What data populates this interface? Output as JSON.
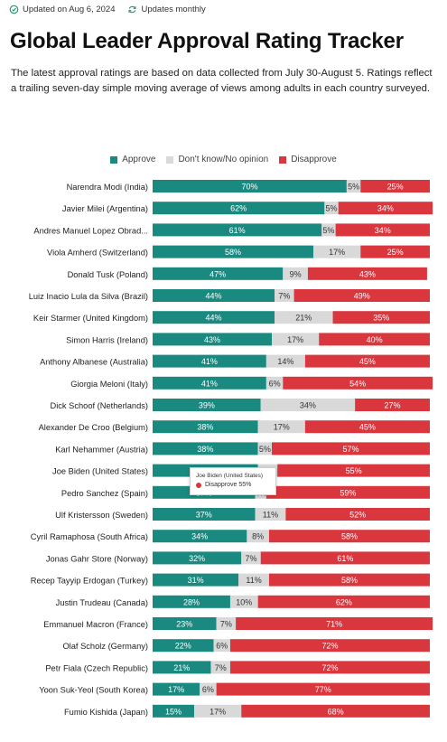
{
  "header": {
    "updated_text": "Updated on Aug 6, 2024",
    "frequency_text": "Updates monthly",
    "icons": [
      "clock-check-icon",
      "refresh-icon"
    ]
  },
  "title": "Global Leader Approval Rating Tracker",
  "subtitle": "The latest approval ratings are based on data collected from July 30-August 5. Ratings reflect a trailing seven-day simple moving average of views among adults in each country surveyed.",
  "colors": {
    "approve": "#1a8a80",
    "dont_know": "#d9d9d9",
    "disapprove": "#d9363e",
    "icon_green": "#2a9a6a"
  },
  "legend": {
    "approve": "Approve",
    "dont_know": "Don't know/No opinion",
    "disapprove": "Disapprove"
  },
  "tooltip": {
    "name": "Joe Biden (United States)",
    "line": "Disapprove 55%"
  },
  "chart_data": {
    "type": "bar",
    "stacked": true,
    "orientation": "horizontal",
    "categories": [
      "Narendra Modi (India)",
      "Javier Milei (Argentina)",
      "Andres Manuel Lopez Obrad...",
      "Viola Amherd (Switzerland)",
      "Donald Tusk (Poland)",
      "Luiz Inacio Lula da Silva (Brazil)",
      "Keir Starmer (United Kingdom)",
      "Simon Harris (Ireland)",
      "Anthony Albanese (Australia)",
      "Giorgia Meloni (Italy)",
      "Dick Schoof (Netherlands)",
      "Alexander De Croo (Belgium)",
      "Karl Nehammer (Austria)",
      "Joe Biden (United States)",
      "Pedro Sanchez (Spain)",
      "Ulf Kristersson (Sweden)",
      "Cyril Ramaphosa (South Africa)",
      "Jonas Gahr Store (Norway)",
      "Recep Tayyip Erdogan (Turkey)",
      "Justin Trudeau (Canada)",
      "Emmanuel Macron (France)",
      "Olaf Scholz (Germany)",
      "Petr Fiala (Czech Republic)",
      "Yoon Suk-Yeol (South Korea)",
      "Fumio Kishida (Japan)"
    ],
    "series": [
      {
        "name": "Approve",
        "values": [
          70,
          62,
          61,
          58,
          47,
          44,
          44,
          43,
          41,
          41,
          39,
          38,
          38,
          38,
          37,
          37,
          34,
          32,
          31,
          28,
          23,
          22,
          21,
          17,
          15
        ]
      },
      {
        "name": "Don't know/No opinion",
        "values": [
          5,
          5,
          5,
          17,
          9,
          7,
          21,
          17,
          14,
          6,
          34,
          17,
          5,
          7,
          4,
          11,
          8,
          7,
          11,
          10,
          7,
          6,
          7,
          6,
          17
        ]
      },
      {
        "name": "Disapprove",
        "values": [
          25,
          34,
          34,
          25,
          43,
          49,
          35,
          40,
          45,
          54,
          27,
          45,
          57,
          55,
          59,
          52,
          58,
          61,
          58,
          62,
          71,
          72,
          72,
          77,
          68
        ]
      }
    ],
    "xlim": [
      0,
      100
    ],
    "value_suffix": "%",
    "legend_position": "top-center",
    "grid": false
  }
}
